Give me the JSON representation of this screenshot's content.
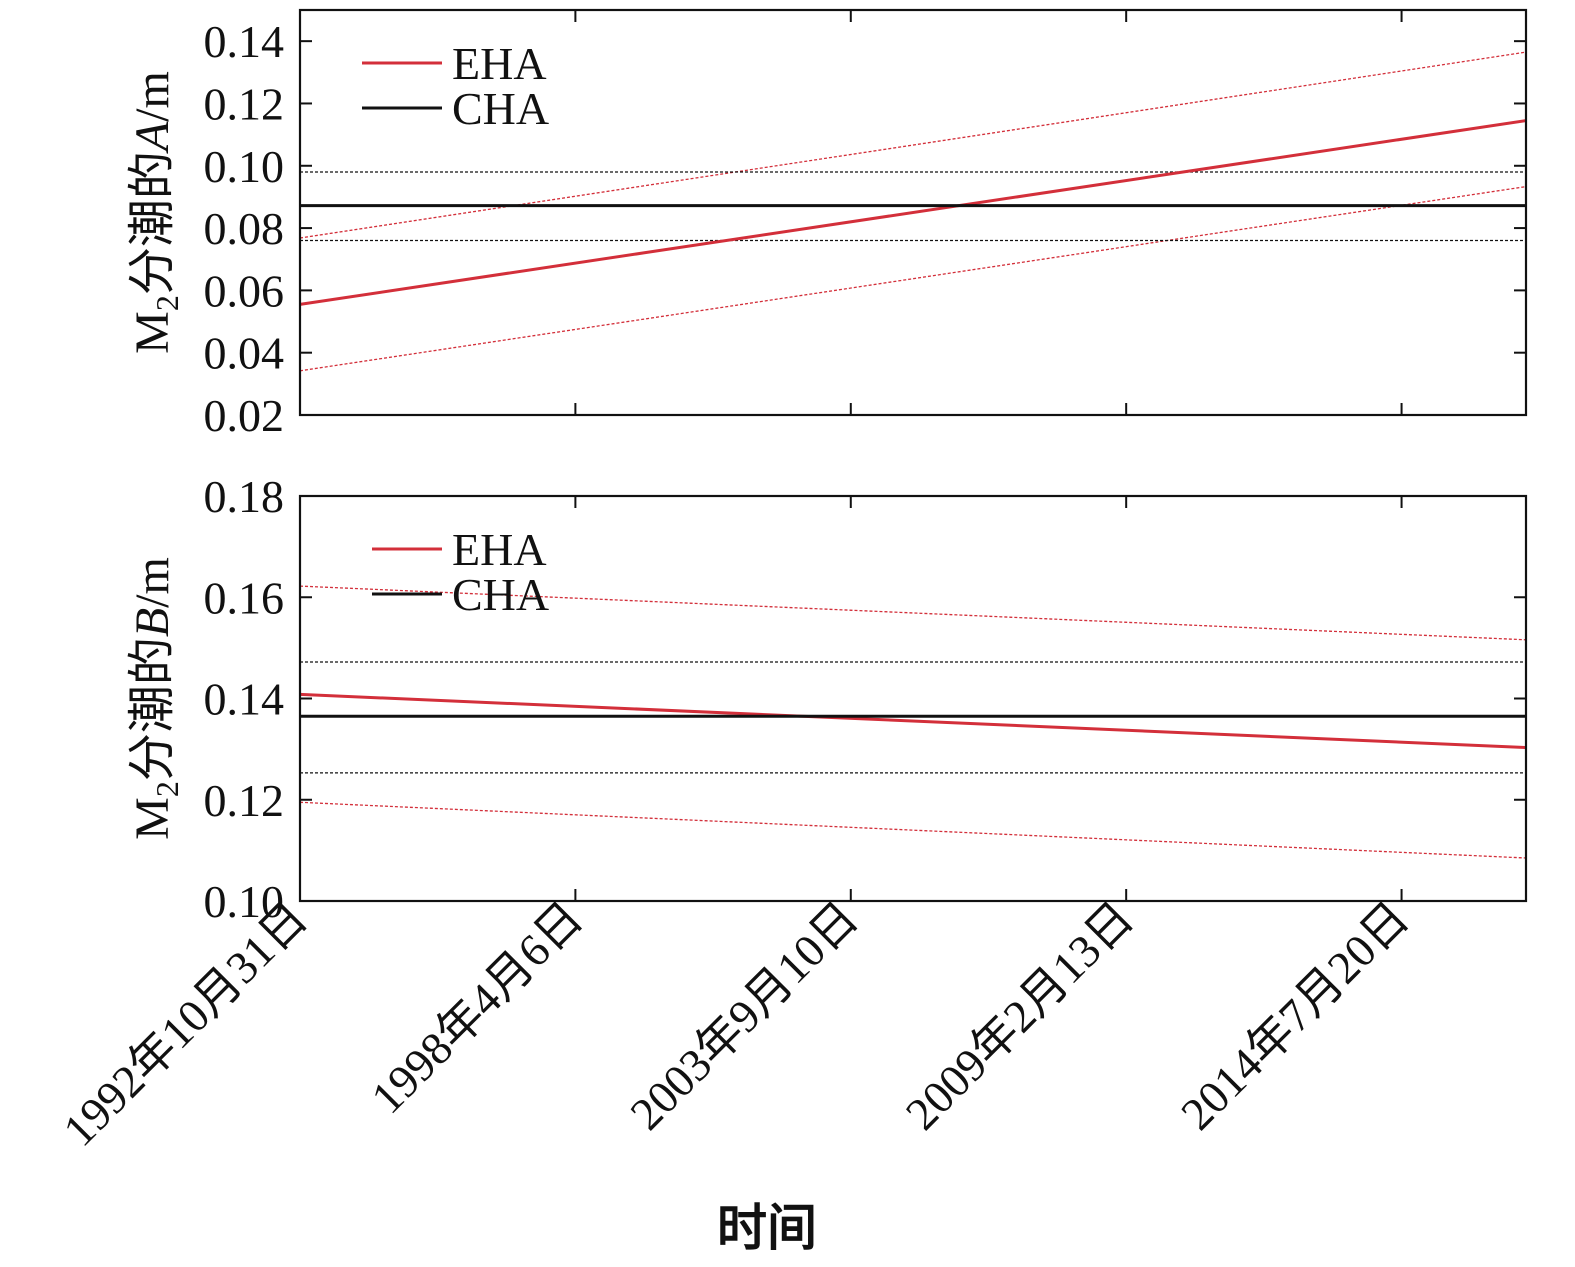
{
  "chart_data": [
    {
      "type": "line",
      "ylabel": {
        "prefix": "M",
        "sub": "2",
        "mid": "分潮的",
        "var": "A",
        "unit": "/m"
      },
      "ylim": [
        0.02,
        0.15
      ],
      "yticks": [
        0.02,
        0.04,
        0.06,
        0.08,
        0.1,
        0.12,
        0.14
      ],
      "ytick_labels": [
        "0.02",
        "0.04",
        "0.06",
        "0.08",
        "0.10",
        "0.12",
        "0.14"
      ],
      "xlim": [
        "1992-10-31",
        "2017-01-01"
      ],
      "legend_position": "top-left",
      "series": [
        {
          "name": "EHA",
          "role": "estimate",
          "style": "solid",
          "color": "#d32f3a",
          "x": [
            "1992-10-31",
            "2017-01-01"
          ],
          "y": [
            0.0555,
            0.1145
          ]
        },
        {
          "name": "",
          "role": "upper-bound",
          "style": "dashed",
          "color": "#d32f3a",
          "x": [
            "1992-10-31",
            "2017-01-01"
          ],
          "y": [
            0.0768,
            0.1365
          ]
        },
        {
          "name": "",
          "role": "lower-bound",
          "style": "dashed",
          "color": "#d32f3a",
          "x": [
            "1992-10-31",
            "2017-01-01"
          ],
          "y": [
            0.0342,
            0.0933
          ]
        },
        {
          "name": "CHA",
          "role": "estimate",
          "style": "solid",
          "color": "#111111",
          "x": [
            "1992-10-31",
            "2017-01-01"
          ],
          "y": [
            0.0872,
            0.0872
          ]
        },
        {
          "name": "",
          "role": "upper-bound",
          "style": "dashed",
          "color": "#111111",
          "x": [
            "1992-10-31",
            "2017-01-01"
          ],
          "y": [
            0.098,
            0.098
          ]
        },
        {
          "name": "",
          "role": "lower-bound",
          "style": "dashed",
          "color": "#111111",
          "x": [
            "1992-10-31",
            "2017-01-01"
          ],
          "y": [
            0.076,
            0.076
          ]
        }
      ]
    },
    {
      "type": "line",
      "ylabel": {
        "prefix": "M",
        "sub": "2",
        "mid": "分潮的",
        "var": "B",
        "unit": "/m"
      },
      "ylim": [
        0.1,
        0.18
      ],
      "yticks": [
        0.1,
        0.12,
        0.14,
        0.16,
        0.18
      ],
      "ytick_labels": [
        "0.10",
        "0.12",
        "0.14",
        "0.16",
        "0.18"
      ],
      "xlim": [
        "1992-10-31",
        "2017-01-01"
      ],
      "xticks": [
        "1992-10-31",
        "1998-04-06",
        "2003-09-10",
        "2009-02-13",
        "2014-07-20"
      ],
      "xtick_labels": [
        "1992年10月31日",
        "1998年4月6日",
        "2003年9月10日",
        "2009年2月13日",
        "2014年7月20日"
      ],
      "xlabel": "时间",
      "legend_position": "top-left",
      "series": [
        {
          "name": "EHA",
          "role": "estimate",
          "style": "solid",
          "color": "#d32f3a",
          "x": [
            "1992-10-31",
            "2017-01-01"
          ],
          "y": [
            0.1408,
            0.1303
          ]
        },
        {
          "name": "",
          "role": "upper-bound",
          "style": "dashed",
          "color": "#d32f3a",
          "x": [
            "1992-10-31",
            "2017-01-01"
          ],
          "y": [
            0.1622,
            0.1516
          ]
        },
        {
          "name": "",
          "role": "lower-bound",
          "style": "dashed",
          "color": "#d32f3a",
          "x": [
            "1992-10-31",
            "2017-01-01"
          ],
          "y": [
            0.1195,
            0.1085
          ]
        },
        {
          "name": "CHA",
          "role": "estimate",
          "style": "solid",
          "color": "#111111",
          "x": [
            "1992-10-31",
            "2017-01-01"
          ],
          "y": [
            0.1365,
            0.1365
          ]
        },
        {
          "name": "",
          "role": "upper-bound",
          "style": "dashed",
          "color": "#111111",
          "x": [
            "1992-10-31",
            "2017-01-01"
          ],
          "y": [
            0.1472,
            0.1472
          ]
        },
        {
          "name": "",
          "role": "lower-bound",
          "style": "dashed",
          "color": "#111111",
          "x": [
            "1992-10-31",
            "2017-01-01"
          ],
          "y": [
            0.1253,
            0.1253
          ]
        }
      ]
    }
  ]
}
